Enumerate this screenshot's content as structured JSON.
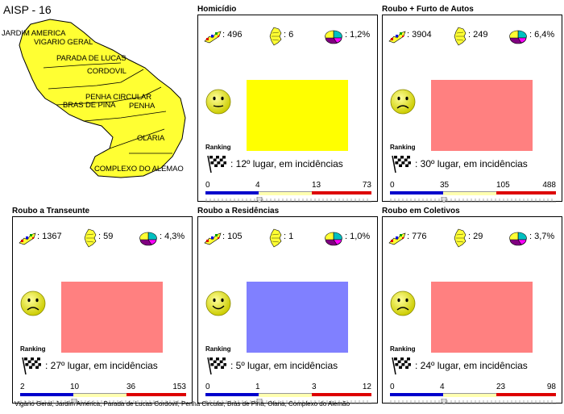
{
  "map": {
    "title": "AISP - 16",
    "neighborhoods": [
      "JARDIM AMERICA",
      "VIGARIO GERAL",
      "PARADA DE LUCAS",
      "CORDOVIL",
      "PENHA CIRCULAR",
      "BRAS DE PINA",
      "PENHA",
      "OLARIA",
      "COMPLEXO DO ALEMAO"
    ],
    "fill_color": "#FFFF33"
  },
  "panels": [
    {
      "title": "Homicídio",
      "count": ": 496",
      "rank_value": ": 6",
      "percent": ": 1,2%",
      "face": "neutral",
      "square_color": "#FFFF00",
      "ranking_label": "Ranking",
      "rank_text": ":  12º lugar, em incidências",
      "scale": [
        "0",
        "4",
        "13",
        "73"
      ]
    },
    {
      "title": "Roubo + Furto de Autos",
      "count": ": 3904",
      "rank_value": ": 249",
      "percent": ": 6,4%",
      "face": "sad",
      "square_color": "#FF8080",
      "ranking_label": "Ranking",
      "rank_text": ":  30º lugar, em incidências",
      "scale": [
        "0",
        "35",
        "105",
        "488"
      ]
    },
    {
      "title": "Roubo a Transeunte",
      "count": ": 1367",
      "rank_value": ": 59",
      "percent": ": 4,3%",
      "face": "sad",
      "square_color": "#FF8080",
      "ranking_label": "Ranking",
      "rank_text": ":  27º lugar, em incidências",
      "scale": [
        "2",
        "10",
        "36",
        "153"
      ]
    },
    {
      "title": "Roubo a Residências",
      "count": ": 105",
      "rank_value": ": 1",
      "percent": ": 1,0%",
      "face": "happy",
      "square_color": "#8080FF",
      "ranking_label": "Ranking",
      "rank_text": ":  5º lugar, em incidências",
      "scale": [
        "0",
        "1",
        "3",
        "12"
      ]
    },
    {
      "title": "Roubo em Coletivos",
      "count": ": 776",
      "rank_value": ": 29",
      "percent": ": 3,7%",
      "face": "sad",
      "square_color": "#FF8080",
      "ranking_label": "Ranking",
      "rank_text": ":  24º lugar, em incidências",
      "scale": [
        "0",
        "4",
        "23",
        "98"
      ]
    }
  ],
  "footer": "Vigário Geral, Jardim América, Parada de Lucas Cordovil, Penha Circular, Brás de Pina, Olaria, Complexo do Alemão",
  "colors": {
    "blue": "#0000CC",
    "yellow": "#FFFFB0",
    "red": "#DD0000"
  },
  "icons": [
    "map-crime-icon",
    "map-yellow-icon",
    "pie-chart-icon",
    "smiley-face-icon",
    "checkered-flag-icon"
  ]
}
